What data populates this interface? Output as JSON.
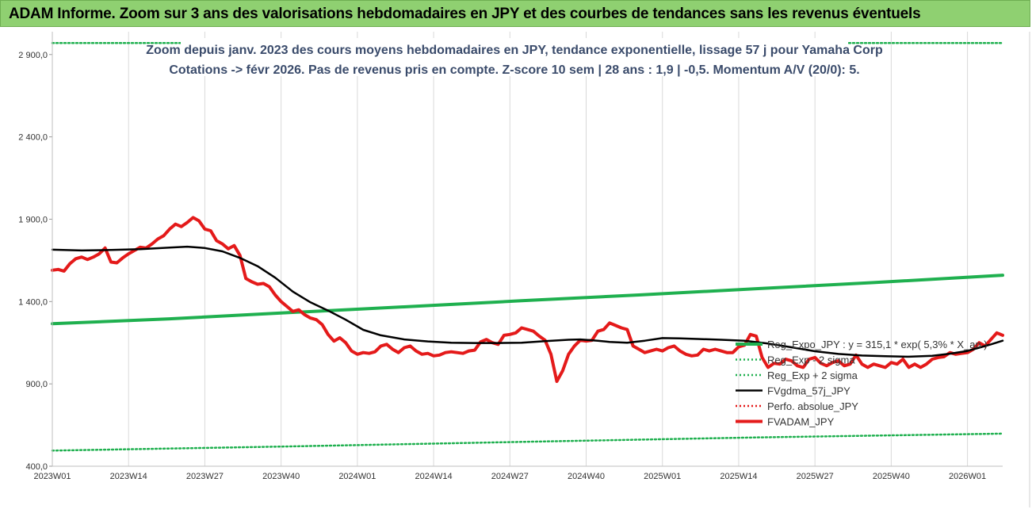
{
  "header": {
    "title": "ADAM Informe. Zoom sur 3 ans des valorisations hebdomadaires en JPY et des courbes de tendances sans les revenus éventuels"
  },
  "colors": {
    "header_bg": "#8fd071",
    "reg_expo": "#1fb04f",
    "sigma": "#1fb04f",
    "fvgdma": "#000000",
    "perfo": "#e41a1a",
    "fvadam": "#e41a1a",
    "axis_text": "#333333",
    "title_text": "#3a4b6b"
  },
  "chart_data": {
    "type": "line",
    "title_line1": "Zoom depuis janv. 2023 des cours moyens hebdomadaires en JPY, tendance exponentielle, lissage 57 j pour Yamaha Corp",
    "title_line2": "Cotations -> févr 2026. Pas de revenus pris en compte. Z-score 10 sem | 28 ans : 1,9 | -0,5. Momentum A/V (20/0): 5.",
    "xlabel": "",
    "ylabel": "",
    "ylim": [
      400,
      3000
    ],
    "x_range": [
      0,
      162
    ],
    "y_ticks": [
      {
        "value": 400,
        "label": "400,0"
      },
      {
        "value": 900,
        "label": "900,0"
      },
      {
        "value": 1400,
        "label": "1 400,0"
      },
      {
        "value": 1900,
        "label": "1 900,0"
      },
      {
        "value": 2400,
        "label": "2 400,0"
      },
      {
        "value": 2900,
        "label": "2 900,0"
      }
    ],
    "x_ticks": [
      {
        "value": 0,
        "label": "2023W01"
      },
      {
        "value": 13,
        "label": "2023W14"
      },
      {
        "value": 26,
        "label": "2023W27"
      },
      {
        "value": 39,
        "label": "2023W40"
      },
      {
        "value": 52,
        "label": "2024W01"
      },
      {
        "value": 65,
        "label": "2024W14"
      },
      {
        "value": 78,
        "label": "2024W27"
      },
      {
        "value": 91,
        "label": "2024W40"
      },
      {
        "value": 104,
        "label": "2025W01"
      },
      {
        "value": 117,
        "label": "2025W14"
      },
      {
        "value": 130,
        "label": "2025W27"
      },
      {
        "value": 143,
        "label": "2025W40"
      },
      {
        "value": 156,
        "label": "2026W01"
      }
    ],
    "series": [
      {
        "name": "Reg_Expo_JPY : y = 315,1 * exp( 5,3% * X_an )",
        "style": "solid-thick",
        "color": "#1fb04f",
        "points": [
          [
            0,
            1265
          ],
          [
            20,
            1295
          ],
          [
            40,
            1332
          ],
          [
            60,
            1368
          ],
          [
            80,
            1405
          ],
          [
            100,
            1440
          ],
          [
            120,
            1478
          ],
          [
            140,
            1515
          ],
          [
            162,
            1560
          ]
        ]
      },
      {
        "name": "Reg_Exp - 2 sigma",
        "style": "dotted",
        "color": "#1fb04f",
        "points": [
          [
            0,
            495
          ],
          [
            40,
            520
          ],
          [
            80,
            548
          ],
          [
            120,
            575
          ],
          [
            162,
            598
          ]
        ]
      },
      {
        "name": "Reg_Exp + 2 sigma",
        "style": "dotted",
        "color": "#1fb04f",
        "points": [
          [
            0,
            2970
          ],
          [
            162,
            2970
          ]
        ]
      },
      {
        "name": "FVgdma_57j_JPY",
        "style": "solid",
        "color": "#000000",
        "points": [
          [
            0,
            1715
          ],
          [
            5,
            1710
          ],
          [
            10,
            1713
          ],
          [
            15,
            1718
          ],
          [
            20,
            1728
          ],
          [
            23,
            1733
          ],
          [
            26,
            1725
          ],
          [
            29,
            1705
          ],
          [
            32,
            1665
          ],
          [
            35,
            1615
          ],
          [
            38,
            1545
          ],
          [
            41,
            1460
          ],
          [
            44,
            1395
          ],
          [
            47,
            1345
          ],
          [
            50,
            1290
          ],
          [
            53,
            1228
          ],
          [
            56,
            1195
          ],
          [
            60,
            1170
          ],
          [
            64,
            1158
          ],
          [
            68,
            1150
          ],
          [
            72,
            1148
          ],
          [
            76,
            1148
          ],
          [
            80,
            1150
          ],
          [
            84,
            1160
          ],
          [
            88,
            1168
          ],
          [
            90,
            1170
          ],
          [
            93,
            1162
          ],
          [
            95,
            1155
          ],
          [
            98,
            1150
          ],
          [
            101,
            1162
          ],
          [
            104,
            1178
          ],
          [
            107,
            1176
          ],
          [
            110,
            1173
          ],
          [
            114,
            1168
          ],
          [
            118,
            1162
          ],
          [
            122,
            1145
          ],
          [
            126,
            1122
          ],
          [
            130,
            1098
          ],
          [
            134,
            1082
          ],
          [
            138,
            1072
          ],
          [
            142,
            1068
          ],
          [
            146,
            1065
          ],
          [
            150,
            1070
          ],
          [
            153,
            1083
          ],
          [
            156,
            1100
          ],
          [
            158,
            1120
          ],
          [
            160,
            1140
          ],
          [
            162,
            1162
          ]
        ]
      },
      {
        "name": "Perfo. absolue_JPY",
        "style": "dotted",
        "color": "#e41a1a",
        "points": []
      },
      {
        "name": "FVADAM_JPY",
        "style": "solid-thick",
        "color": "#e41a1a",
        "points": [
          [
            0,
            1590
          ],
          [
            1,
            1595
          ],
          [
            2,
            1585
          ],
          [
            3,
            1630
          ],
          [
            4,
            1660
          ],
          [
            5,
            1670
          ],
          [
            6,
            1655
          ],
          [
            7,
            1670
          ],
          [
            8,
            1690
          ],
          [
            9,
            1725
          ],
          [
            10,
            1640
          ],
          [
            11,
            1635
          ],
          [
            12,
            1665
          ],
          [
            13,
            1690
          ],
          [
            14,
            1710
          ],
          [
            15,
            1730
          ],
          [
            16,
            1725
          ],
          [
            17,
            1750
          ],
          [
            18,
            1780
          ],
          [
            19,
            1800
          ],
          [
            20,
            1840
          ],
          [
            21,
            1870
          ],
          [
            22,
            1855
          ],
          [
            23,
            1880
          ],
          [
            24,
            1910
          ],
          [
            25,
            1890
          ],
          [
            26,
            1840
          ],
          [
            27,
            1830
          ],
          [
            28,
            1770
          ],
          [
            29,
            1750
          ],
          [
            30,
            1720
          ],
          [
            31,
            1740
          ],
          [
            32,
            1680
          ],
          [
            33,
            1540
          ],
          [
            34,
            1520
          ],
          [
            35,
            1505
          ],
          [
            36,
            1510
          ],
          [
            37,
            1490
          ],
          [
            38,
            1440
          ],
          [
            39,
            1400
          ],
          [
            40,
            1370
          ],
          [
            41,
            1340
          ],
          [
            42,
            1350
          ],
          [
            43,
            1320
          ],
          [
            44,
            1300
          ],
          [
            45,
            1290
          ],
          [
            46,
            1260
          ],
          [
            47,
            1200
          ],
          [
            48,
            1160
          ],
          [
            49,
            1180
          ],
          [
            50,
            1150
          ],
          [
            51,
            1100
          ],
          [
            52,
            1080
          ],
          [
            53,
            1090
          ],
          [
            54,
            1085
          ],
          [
            55,
            1095
          ],
          [
            56,
            1130
          ],
          [
            57,
            1140
          ],
          [
            58,
            1110
          ],
          [
            59,
            1090
          ],
          [
            60,
            1120
          ],
          [
            61,
            1130
          ],
          [
            62,
            1100
          ],
          [
            63,
            1080
          ],
          [
            64,
            1085
          ],
          [
            65,
            1070
          ],
          [
            66,
            1075
          ],
          [
            67,
            1090
          ],
          [
            68,
            1095
          ],
          [
            69,
            1090
          ],
          [
            70,
            1085
          ],
          [
            71,
            1100
          ],
          [
            72,
            1105
          ],
          [
            73,
            1155
          ],
          [
            74,
            1170
          ],
          [
            75,
            1150
          ],
          [
            76,
            1140
          ],
          [
            77,
            1195
          ],
          [
            78,
            1200
          ],
          [
            79,
            1210
          ],
          [
            80,
            1240
          ],
          [
            81,
            1230
          ],
          [
            82,
            1220
          ],
          [
            83,
            1190
          ],
          [
            84,
            1165
          ],
          [
            85,
            1080
          ],
          [
            86,
            915
          ],
          [
            87,
            980
          ],
          [
            88,
            1080
          ],
          [
            89,
            1130
          ],
          [
            90,
            1165
          ],
          [
            91,
            1160
          ],
          [
            92,
            1165
          ],
          [
            93,
            1220
          ],
          [
            94,
            1230
          ],
          [
            95,
            1270
          ],
          [
            96,
            1255
          ],
          [
            97,
            1240
          ],
          [
            98,
            1230
          ],
          [
            99,
            1130
          ],
          [
            100,
            1110
          ],
          [
            101,
            1090
          ],
          [
            102,
            1100
          ],
          [
            103,
            1110
          ],
          [
            104,
            1100
          ],
          [
            105,
            1120
          ],
          [
            106,
            1130
          ],
          [
            107,
            1100
          ],
          [
            108,
            1080
          ],
          [
            109,
            1070
          ],
          [
            110,
            1075
          ],
          [
            111,
            1110
          ],
          [
            112,
            1100
          ],
          [
            113,
            1110
          ],
          [
            114,
            1100
          ],
          [
            115,
            1090
          ],
          [
            116,
            1090
          ],
          [
            117,
            1125
          ],
          [
            118,
            1135
          ],
          [
            119,
            1200
          ],
          [
            120,
            1190
          ],
          [
            121,
            1060
          ],
          [
            122,
            1000
          ],
          [
            123,
            1025
          ],
          [
            124,
            1020
          ],
          [
            125,
            1050
          ],
          [
            126,
            1040
          ],
          [
            127,
            1010
          ],
          [
            128,
            1000
          ],
          [
            129,
            1050
          ],
          [
            130,
            1060
          ],
          [
            131,
            1025
          ],
          [
            132,
            1010
          ],
          [
            133,
            1030
          ],
          [
            134,
            1040
          ],
          [
            135,
            1010
          ],
          [
            136,
            1020
          ],
          [
            137,
            1075
          ],
          [
            138,
            1020
          ],
          [
            139,
            1000
          ],
          [
            140,
            1020
          ],
          [
            141,
            1010
          ],
          [
            142,
            1000
          ],
          [
            143,
            1030
          ],
          [
            144,
            1020
          ],
          [
            145,
            1050
          ],
          [
            146,
            1000
          ],
          [
            147,
            1020
          ],
          [
            148,
            1000
          ],
          [
            149,
            1020
          ],
          [
            150,
            1050
          ],
          [
            151,
            1060
          ],
          [
            152,
            1065
          ],
          [
            153,
            1090
          ],
          [
            154,
            1080
          ],
          [
            155,
            1085
          ],
          [
            156,
            1090
          ],
          [
            157,
            1110
          ],
          [
            158,
            1150
          ],
          [
            159,
            1130
          ],
          [
            160,
            1170
          ],
          [
            161,
            1210
          ],
          [
            162,
            1195
          ]
        ]
      }
    ],
    "legend": [
      {
        "label": "Reg_Expo_JPY : y = 315,1 * exp( 5,3% *  X_an )",
        "style": "solid-thick",
        "color": "#1fb04f"
      },
      {
        "label": "Reg_Exp - 2 sigma",
        "style": "dotted",
        "color": "#1fb04f"
      },
      {
        "label": "Reg_Exp + 2 sigma",
        "style": "dotted",
        "color": "#1fb04f"
      },
      {
        "label": "FVgdma_57j_JPY",
        "style": "solid",
        "color": "#000000"
      },
      {
        "label": "Perfo. absolue_JPY",
        "style": "dotted",
        "color": "#e41a1a"
      },
      {
        "label": "FVADAM_JPY",
        "style": "solid-thick",
        "color": "#e41a1a"
      }
    ],
    "legend_position": "right"
  }
}
